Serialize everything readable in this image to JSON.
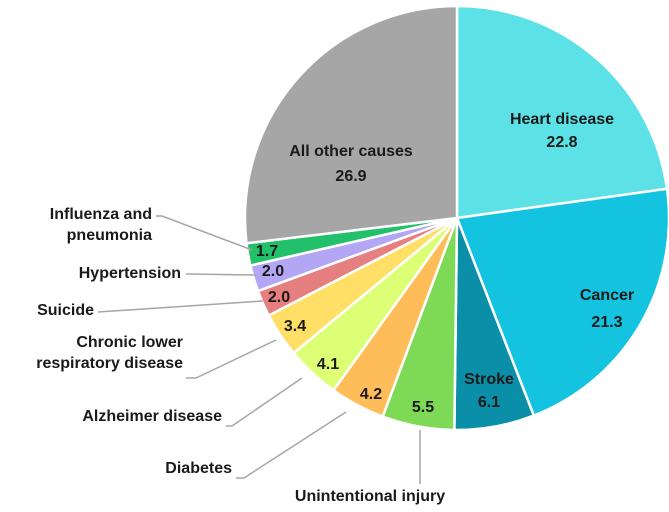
{
  "chart_data": {
    "type": "pie",
    "categories": [
      "Heart disease",
      "Cancer",
      "Stroke",
      "Unintentional injury",
      "Diabetes",
      "Alzheimer disease",
      "Chronic lower respiratory disease",
      "Suicide",
      "Hypertension",
      "Influenza and pneumonia",
      "All other causes"
    ],
    "values": [
      22.8,
      21.3,
      6.1,
      5.5,
      4.2,
      4.1,
      3.4,
      2.0,
      2.0,
      1.7,
      26.9
    ],
    "value_labels": [
      "22.8",
      "21.3",
      "6.1",
      "5.5",
      "4.2",
      "4.1",
      "3.4",
      "2.0",
      "2.0",
      "1.7",
      "26.9"
    ],
    "colors": [
      "#5ce1e6",
      "#14c3e0",
      "#0b8fa8",
      "#7ed957",
      "#ffbd59",
      "#dcff75",
      "#ffdf66",
      "#e67f7f",
      "#b3a6f5",
      "#22c06b",
      "#a6a6a6"
    ]
  }
}
